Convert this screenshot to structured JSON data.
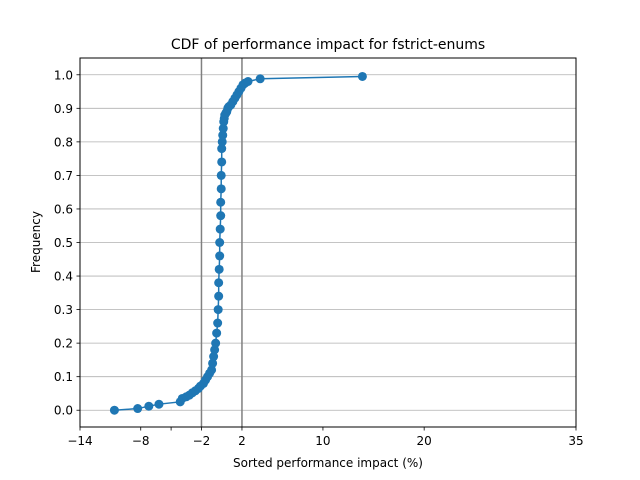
{
  "chart_data": {
    "type": "line",
    "title": "CDF of performance impact for fstrict-enums",
    "xlabel": "Sorted performance impact (%)",
    "ylabel": "Frequency",
    "xlim": [
      -14,
      35
    ],
    "ylim": [
      -0.05,
      1.05
    ],
    "x_ticks": [
      -14,
      -8,
      -5,
      -2,
      2,
      10,
      20,
      35
    ],
    "x_tick_labels": [
      "−14",
      "−8",
      "",
      "−2",
      "2",
      "10",
      "20",
      "35"
    ],
    "y_ticks": [
      0.0,
      0.1,
      0.2,
      0.3,
      0.4,
      0.5,
      0.6,
      0.7,
      0.8,
      0.9,
      1.0
    ],
    "y_tick_labels": [
      "0.0",
      "0.1",
      "0.2",
      "0.3",
      "0.4",
      "0.5",
      "0.6",
      "0.7",
      "0.8",
      "0.9",
      "1.0"
    ],
    "grid": "horizontal",
    "reference_lines_x": [
      -2,
      2
    ],
    "colors": {
      "series": "#1f77b4",
      "reference": "#808080",
      "grid": "#b0b0b0"
    },
    "series": [
      {
        "x": [
          -10.6,
          -8.3,
          -7.2,
          -6.2,
          -4.1,
          -3.9,
          -3.5,
          -3.2,
          -2.9,
          -2.6,
          -2.3,
          -2.1,
          -1.8,
          -1.6,
          -1.4,
          -1.2,
          -1.0,
          -0.9,
          -0.8,
          -0.7,
          -0.6,
          -0.5,
          -0.4,
          -0.35,
          -0.3,
          -0.3,
          -0.25,
          -0.2,
          -0.2,
          -0.15,
          -0.1,
          -0.1,
          -0.05,
          -0.05,
          0.0,
          0.0,
          0.05,
          0.1,
          0.15,
          0.2,
          0.25,
          0.3,
          0.4,
          0.5,
          0.6,
          0.7,
          0.9,
          1.1,
          1.3,
          1.5,
          1.7,
          1.9,
          2.1,
          2.3,
          2.6,
          3.8,
          13.9
        ],
        "y": [
          0.0,
          0.005,
          0.012,
          0.018,
          0.025,
          0.035,
          0.04,
          0.045,
          0.052,
          0.058,
          0.065,
          0.072,
          0.08,
          0.09,
          0.1,
          0.11,
          0.12,
          0.14,
          0.16,
          0.18,
          0.2,
          0.23,
          0.26,
          0.3,
          0.34,
          0.38,
          0.42,
          0.46,
          0.5,
          0.54,
          0.58,
          0.62,
          0.66,
          0.7,
          0.74,
          0.78,
          0.8,
          0.82,
          0.84,
          0.86,
          0.87,
          0.88,
          0.885,
          0.89,
          0.9,
          0.905,
          0.91,
          0.92,
          0.93,
          0.94,
          0.95,
          0.96,
          0.97,
          0.975,
          0.98,
          0.988,
          0.995
        ]
      }
    ]
  }
}
